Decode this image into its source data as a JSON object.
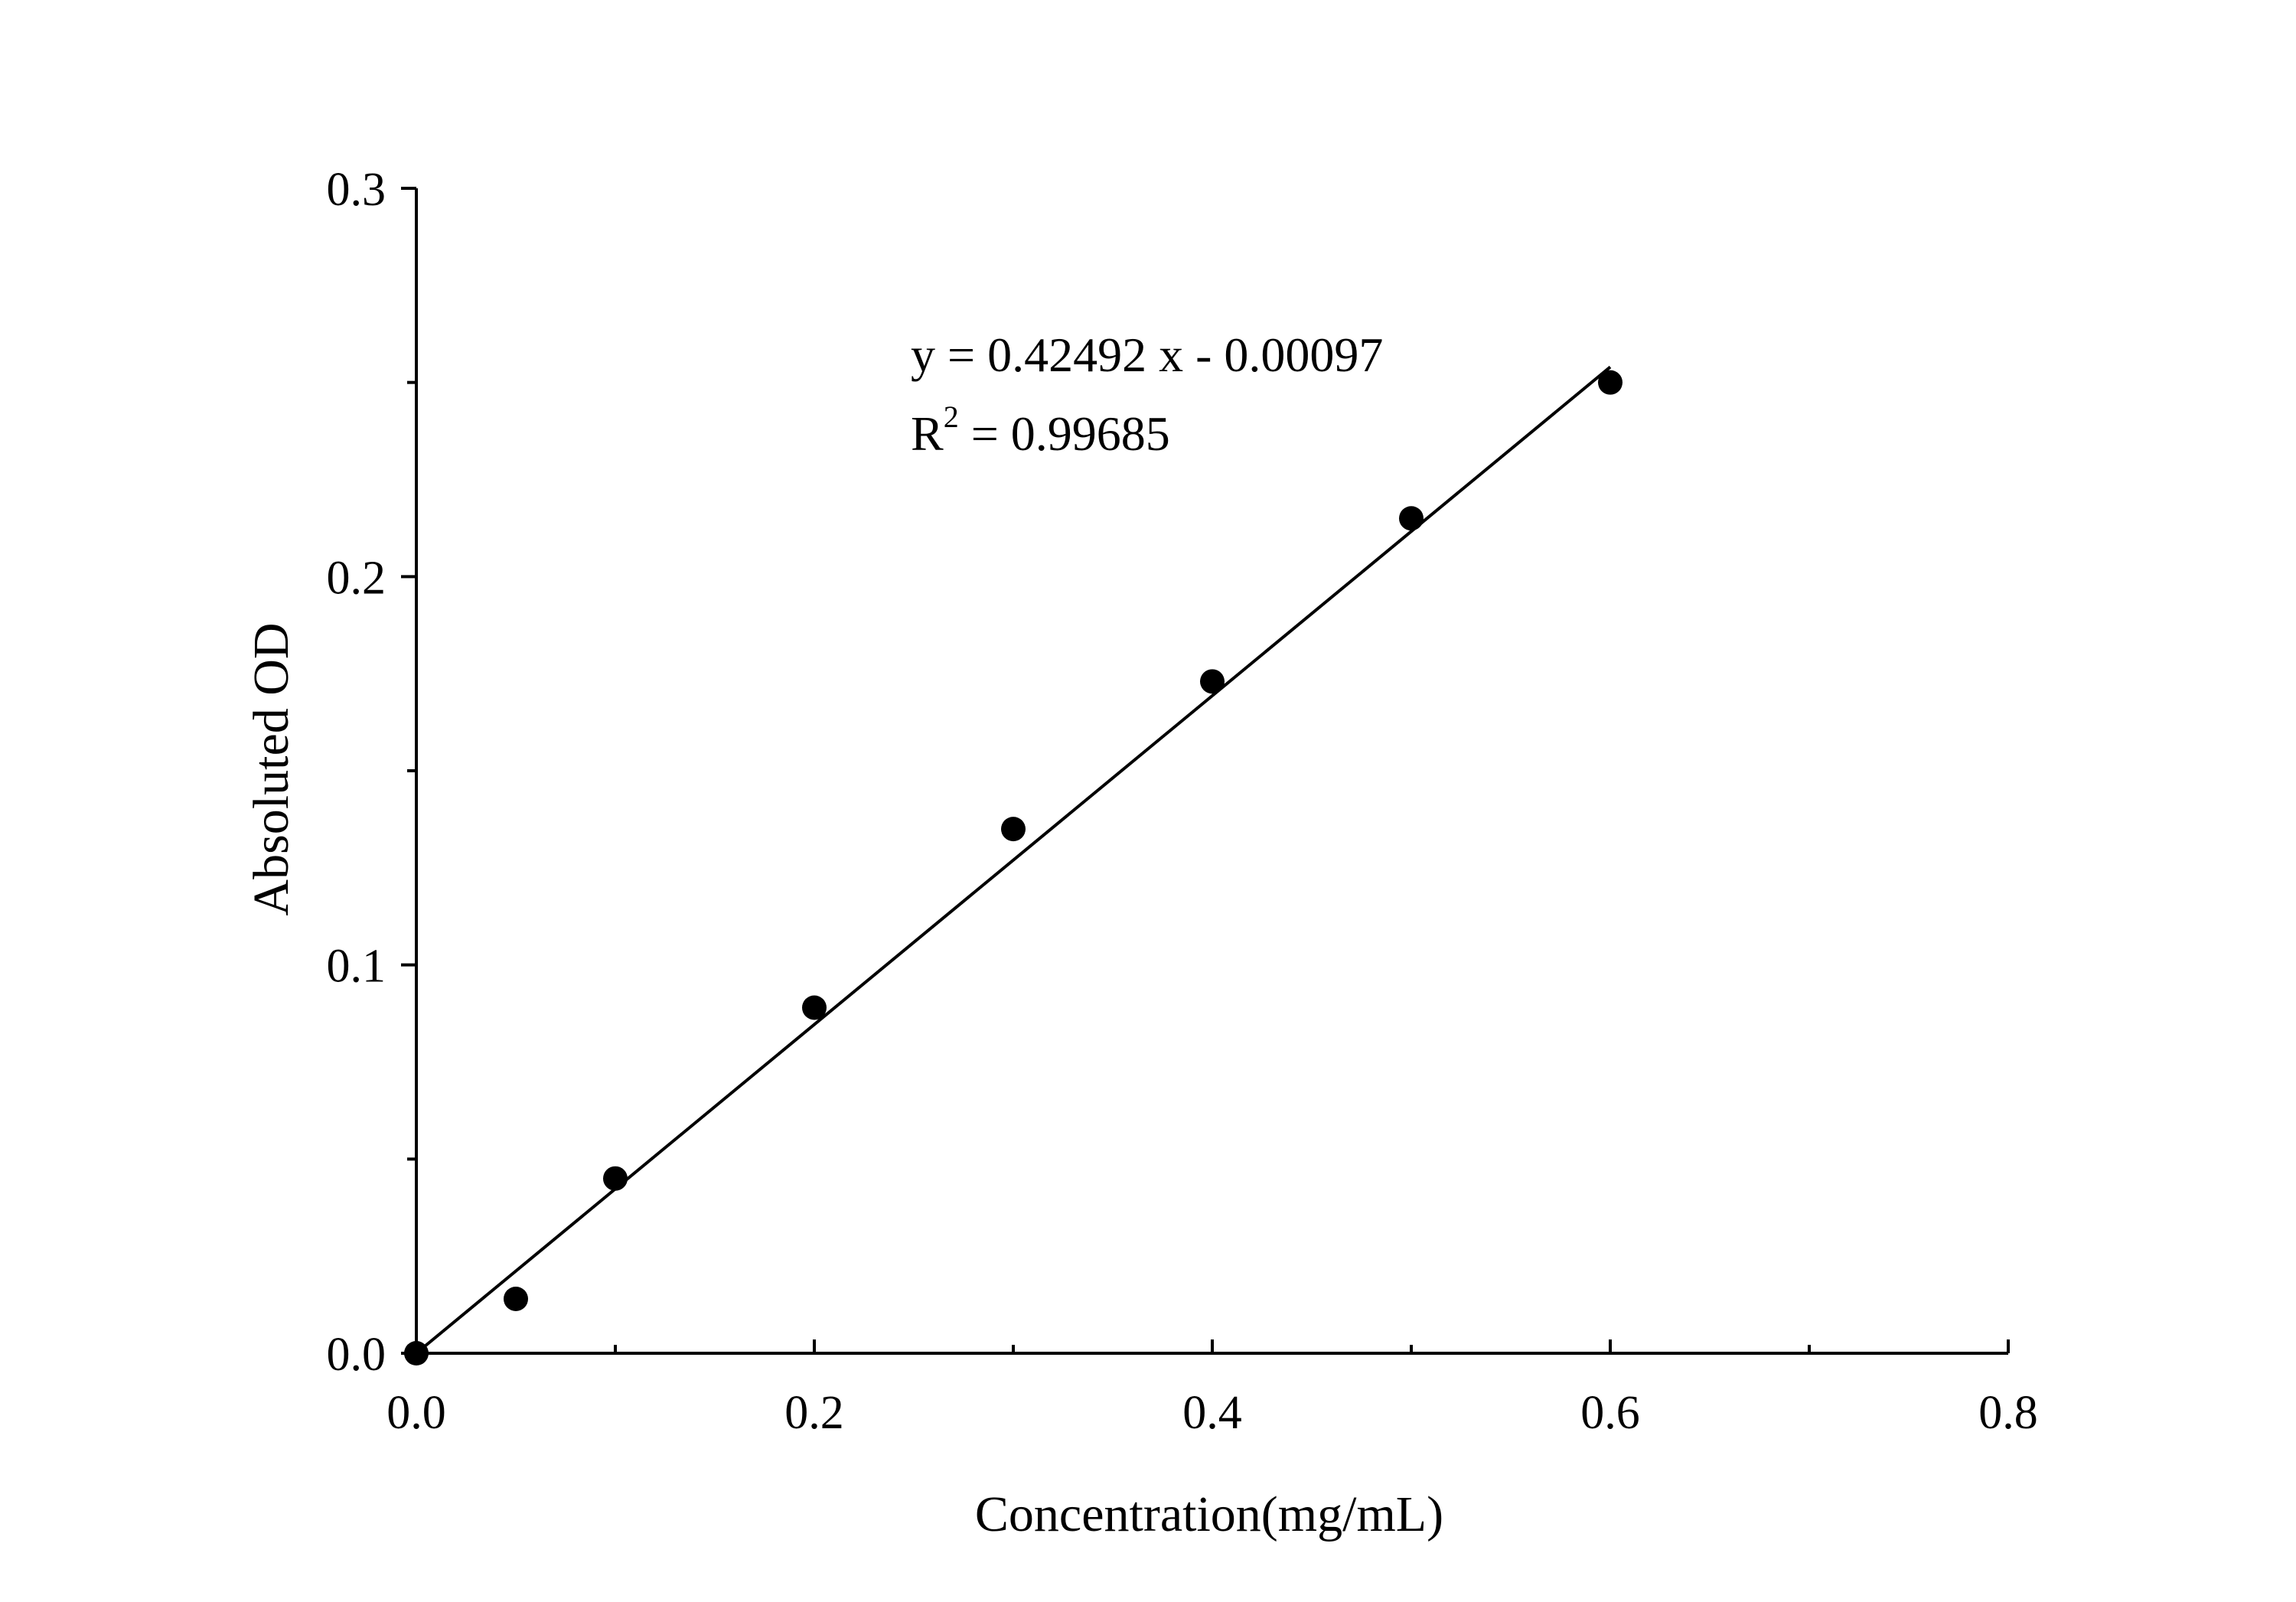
{
  "chart_data": {
    "type": "scatter",
    "xlabel": "Concentration(mg/mL)",
    "ylabel": "Absoluted OD",
    "xlim": [
      0,
      0.8
    ],
    "ylim": [
      0,
      0.3
    ],
    "xticks": [
      0.0,
      0.2,
      0.4,
      0.6,
      0.8
    ],
    "yticks": [
      0.0,
      0.1,
      0.2,
      0.3
    ],
    "xtick_labels": [
      "0.0",
      "0.2",
      "0.4",
      "0.6",
      "0.8"
    ],
    "ytick_labels": [
      "0.0",
      "0.1",
      "0.2",
      "0.3"
    ],
    "x_minor_ticks": [
      0.1,
      0.3,
      0.5,
      0.7
    ],
    "y_minor_ticks": [
      0.05,
      0.15,
      0.25
    ],
    "grid": false,
    "series": [
      {
        "x": [
          0.0,
          0.05,
          0.1,
          0.2,
          0.3,
          0.4,
          0.5,
          0.6
        ],
        "y": [
          0.0,
          0.014,
          0.045,
          0.089,
          0.135,
          0.173,
          0.215,
          0.25
        ],
        "color": "#000000",
        "marker": "circle"
      }
    ],
    "fit_line": {
      "slope": 0.42492,
      "intercept": -0.00097,
      "x_range": [
        0.0,
        0.6
      ],
      "color": "#000000"
    },
    "annotations": {
      "equation": "y = 0.42492 x - 0.00097",
      "r2_prefix": "R",
      "r2_sup": "2",
      "r2_value": " = 0.99685"
    }
  }
}
